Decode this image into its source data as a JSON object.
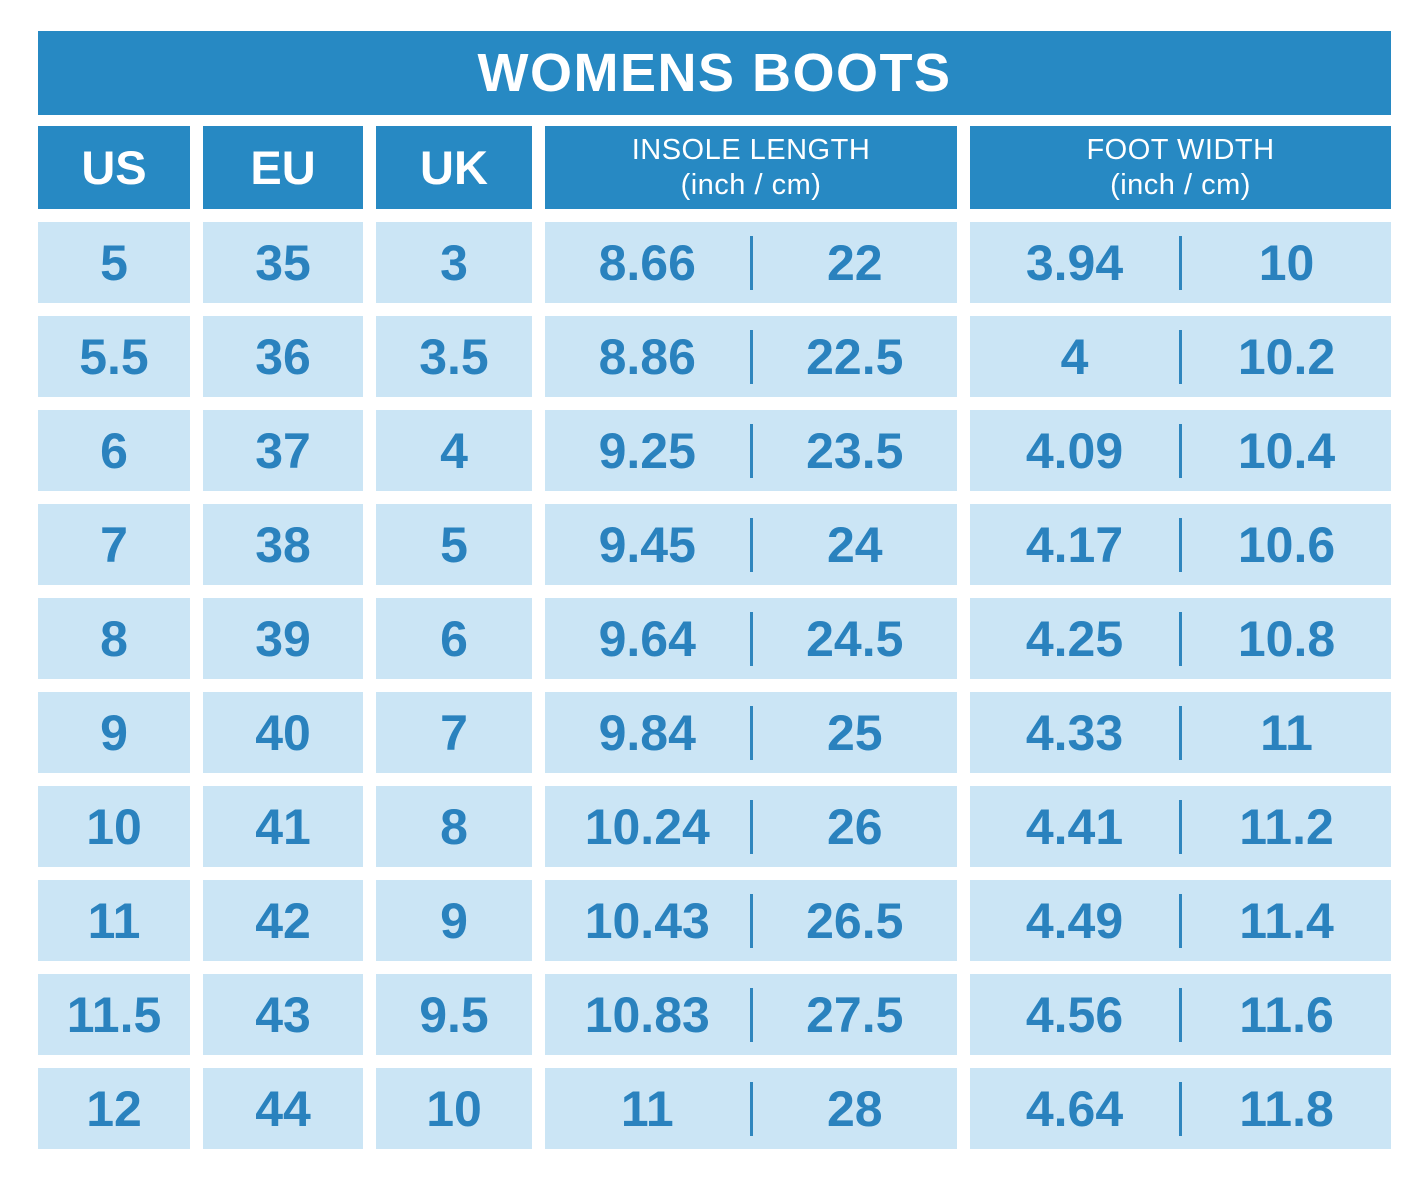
{
  "title": "WOMENS BOOTS",
  "header": {
    "us": "US",
    "eu": "EU",
    "uk": "UK",
    "insole": {
      "label": "INSOLE LENGTH",
      "unit": "(inch / cm)"
    },
    "foot": {
      "label": "FOOT WIDTH",
      "unit": "(inch / cm)"
    }
  },
  "chart_data": {
    "type": "table",
    "title": "WOMENS BOOTS",
    "columns": [
      "US",
      "EU",
      "UK",
      "INSOLE LENGTH (inch / cm)",
      "FOOT WIDTH (inch / cm)"
    ],
    "rows": [
      {
        "us": "5",
        "eu": "35",
        "uk": "3",
        "insole_in": "8.66",
        "insole_cm": "22",
        "width_in": "3.94",
        "width_cm": "10"
      },
      {
        "us": "5.5",
        "eu": "36",
        "uk": "3.5",
        "insole_in": "8.86",
        "insole_cm": "22.5",
        "width_in": "4",
        "width_cm": "10.2"
      },
      {
        "us": "6",
        "eu": "37",
        "uk": "4",
        "insole_in": "9.25",
        "insole_cm": "23.5",
        "width_in": "4.09",
        "width_cm": "10.4"
      },
      {
        "us": "7",
        "eu": "38",
        "uk": "5",
        "insole_in": "9.45",
        "insole_cm": "24",
        "width_in": "4.17",
        "width_cm": "10.6"
      },
      {
        "us": "8",
        "eu": "39",
        "uk": "6",
        "insole_in": "9.64",
        "insole_cm": "24.5",
        "width_in": "4.25",
        "width_cm": "10.8"
      },
      {
        "us": "9",
        "eu": "40",
        "uk": "7",
        "insole_in": "9.84",
        "insole_cm": "25",
        "width_in": "4.33",
        "width_cm": "11"
      },
      {
        "us": "10",
        "eu": "41",
        "uk": "8",
        "insole_in": "10.24",
        "insole_cm": "26",
        "width_in": "4.41",
        "width_cm": "11.2"
      },
      {
        "us": "11",
        "eu": "42",
        "uk": "9",
        "insole_in": "10.43",
        "insole_cm": "26.5",
        "width_in": "4.49",
        "width_cm": "11.4"
      },
      {
        "us": "11.5",
        "eu": "43",
        "uk": "9.5",
        "insole_in": "10.83",
        "insole_cm": "27.5",
        "width_in": "4.56",
        "width_cm": "11.6"
      },
      {
        "us": "12",
        "eu": "44",
        "uk": "10",
        "insole_in": "11",
        "insole_cm": "28",
        "width_in": "4.64",
        "width_cm": "11.8"
      }
    ]
  },
  "colors": {
    "header_blue": "#2789c3",
    "cell_blue": "#cbe5f5",
    "text_blue": "#2a82be",
    "header_text": "#ffffff",
    "background": "#ffffff"
  }
}
